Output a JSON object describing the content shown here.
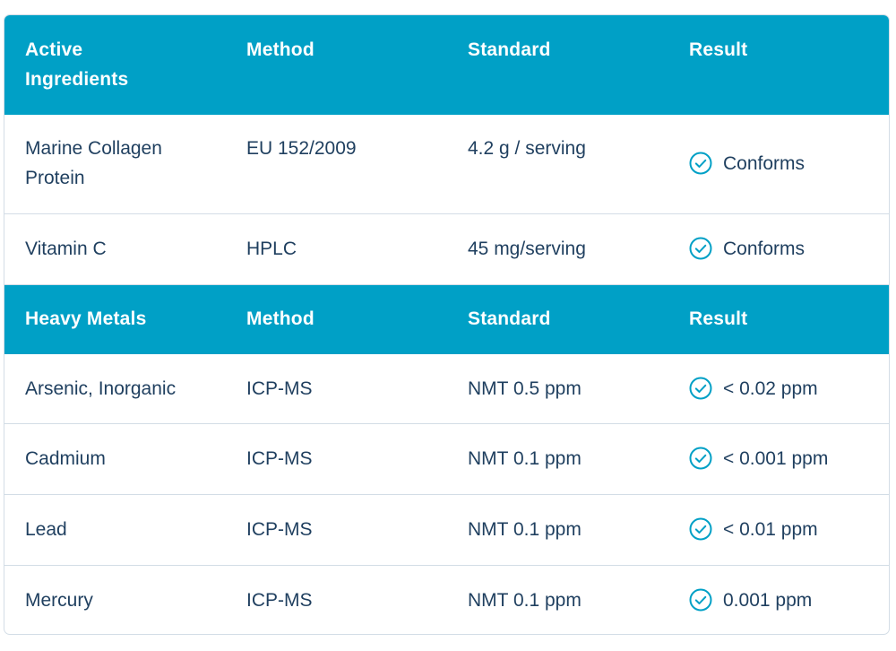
{
  "colors": {
    "header_bg": "#00a0c6",
    "text": "#1f3f5f",
    "check": "#00a0c6",
    "border": "#d3dde6"
  },
  "sections": [
    {
      "header": {
        "col1": "Active Ingredients",
        "col2": "Method",
        "col3": "Standard",
        "col4": "Result"
      },
      "rows": [
        {
          "name": "Marine Collagen Protein",
          "method": "EU 152/2009",
          "standard": "4.2 g / serving",
          "result": "Conforms",
          "result_icon": "check-circle-icon"
        },
        {
          "name": "Vitamin C",
          "method": "HPLC",
          "standard": "45 mg/serving",
          "result": "Conforms",
          "result_icon": "check-circle-icon"
        }
      ]
    },
    {
      "header": {
        "col1": "Heavy Metals",
        "col2": "Method",
        "col3": "Standard",
        "col4": "Result"
      },
      "rows": [
        {
          "name": "Arsenic, Inorganic",
          "method": "ICP-MS",
          "standard": "NMT 0.5 ppm",
          "result": "< 0.02 ppm",
          "result_icon": "check-circle-icon"
        },
        {
          "name": "Cadmium",
          "method": "ICP-MS",
          "standard": "NMT 0.1 ppm",
          "result": "< 0.001 ppm",
          "result_icon": "check-circle-icon"
        },
        {
          "name": "Lead",
          "method": "ICP-MS",
          "standard": "NMT 0.1 ppm",
          "result": "< 0.01 ppm",
          "result_icon": "check-circle-icon"
        },
        {
          "name": "Mercury",
          "method": "ICP-MS",
          "standard": "NMT 0.1 ppm",
          "result": "0.001 ppm",
          "result_icon": "check-circle-icon"
        }
      ]
    }
  ]
}
